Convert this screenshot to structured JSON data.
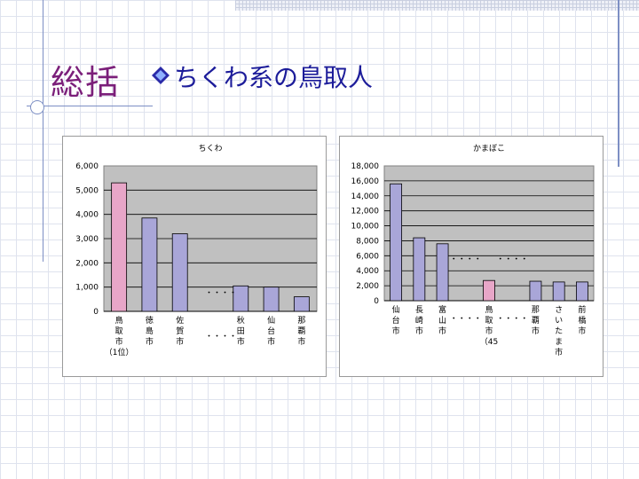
{
  "slide": {
    "title": "総括",
    "subtitle": "ちくわ系の鳥取人"
  },
  "chart_data": [
    {
      "type": "bar",
      "title": "ちくわ",
      "categories": [
        "鳥取市（1位）",
        "徳島市",
        "佐賀市",
        "秋田市",
        "仙台市",
        "那覇市"
      ],
      "values": [
        5300,
        3850,
        3200,
        1050,
        1000,
        600
      ],
      "ylim": [
        0,
        6000
      ],
      "yticks": [
        "6,000",
        "5,000",
        "4,000",
        "3,000",
        "2,000",
        "1,000",
        "0"
      ],
      "grid": true,
      "highlight_color": "#e8a6c8",
      "bar_color": "#a9a6d8",
      "plot_bg": "#c0c0c0",
      "cat_labels": [
        [
          "鳥",
          "取",
          "市",
          "（1位）"
        ],
        [
          "徳",
          "島",
          "市"
        ],
        [
          "佐",
          "賀",
          "市"
        ],
        [
          "秋",
          "田",
          "市"
        ],
        [
          "仙",
          "台",
          "市"
        ],
        [
          "那",
          "覇",
          "市"
        ]
      ],
      "ellipsis": "・・・・"
    },
    {
      "type": "bar",
      "title": "かまぼこ",
      "categories": [
        "仙台市",
        "長崎市",
        "富山市",
        "鳥取市（45",
        "那覇市",
        "さいたま市",
        "前橋市"
      ],
      "values": [
        15600,
        8400,
        7600,
        2700,
        2600,
        2500,
        2500
      ],
      "ylim": [
        0,
        18000
      ],
      "yticks": [
        "18,000",
        "16,000",
        "14,000",
        "12,000",
        "10,000",
        "8,000",
        "6,000",
        "4,000",
        "2,000",
        "0"
      ],
      "grid": true,
      "highlight_color": "#e8a6c8",
      "bar_color": "#a9a6d8",
      "plot_bg": "#c0c0c0",
      "cat_labels": [
        [
          "仙",
          "台",
          "市"
        ],
        [
          "長",
          "崎",
          "市"
        ],
        [
          "富",
          "山",
          "市"
        ],
        [
          "鳥",
          "取",
          "市",
          "（45"
        ],
        [
          "那",
          "覇",
          "市"
        ],
        [
          "さ",
          "い",
          "た",
          "ま",
          "市"
        ],
        [
          "前",
          "橋",
          "市"
        ]
      ],
      "ellipsis": "・・・・"
    }
  ]
}
